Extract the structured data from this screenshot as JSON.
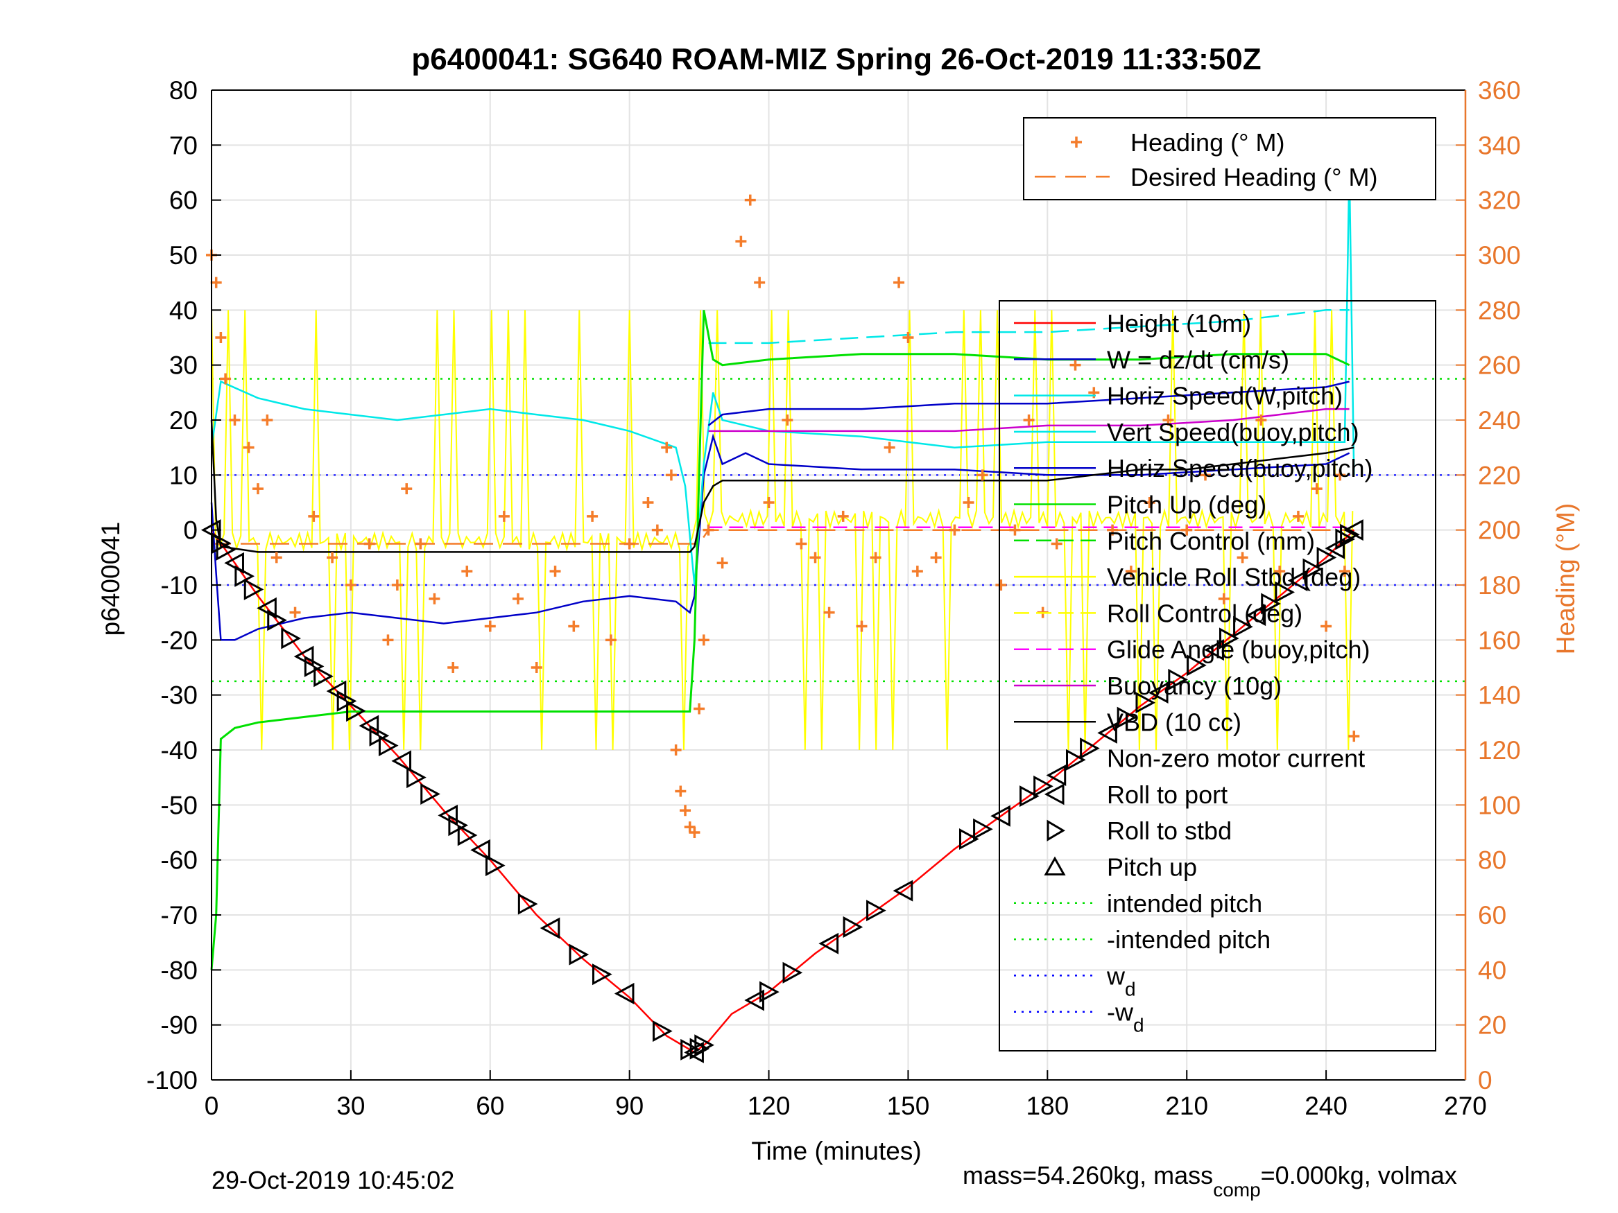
{
  "chart_data": {
    "type": "line",
    "title": "p6400041: SG640 ROAM-MIZ Spring 26-Oct-2019 11:33:50Z",
    "xlabel": "Time (minutes)",
    "ylabel": "p6400041",
    "ylabel_right": "Heading (°M)",
    "xlim": [
      0,
      270
    ],
    "ylim": [
      -100,
      80
    ],
    "ylim_right": [
      0,
      360
    ],
    "x_ticks": [
      0,
      30,
      60,
      90,
      120,
      150,
      180,
      210,
      240,
      270
    ],
    "y_ticks": [
      80,
      70,
      60,
      50,
      40,
      30,
      20,
      10,
      0,
      -10,
      -20,
      -30,
      -40,
      -50,
      -60,
      -70,
      -80,
      -90,
      -100
    ],
    "y_ticks_right": [
      360,
      340,
      320,
      300,
      280,
      260,
      240,
      220,
      200,
      180,
      160,
      140,
      120,
      100,
      80,
      60,
      40,
      20,
      0
    ],
    "grid": true,
    "legend_top": [
      {
        "label": "Heading (° M)",
        "color": "#f47c2a",
        "style": "plus"
      },
      {
        "label": "Desired Heading (° M)",
        "color": "#f47c2a",
        "style": "dash"
      }
    ],
    "legend_main": [
      {
        "label": "Height (10m)",
        "color": "#ff0000",
        "style": "line"
      },
      {
        "label": "W = dz/dt (cm/s)",
        "color": "#0000c8",
        "style": "line"
      },
      {
        "label": "Horiz Speed(W,pitch)",
        "color": "#00e8e8",
        "style": "line"
      },
      {
        "label": "Vert Speed(buoy,pitch)",
        "color": "#00e8e8",
        "style": "line"
      },
      {
        "label": "Horiz Speed(buoy,pitch)",
        "color": "#0000c8",
        "style": "line"
      },
      {
        "label": "Pitch Up (deg)",
        "color": "#00e000",
        "style": "line"
      },
      {
        "label": "Pitch Control (mm)",
        "color": "#00e000",
        "style": "dash"
      },
      {
        "label": "Vehicle Roll Stbd (deg)",
        "color": "#ffff00",
        "style": "line"
      },
      {
        "label": "Roll Control (deg)",
        "color": "#ffff00",
        "style": "dash"
      },
      {
        "label": "Glide Angle (buoy,pitch)",
        "color": "#ff00ff",
        "style": "dash"
      },
      {
        "label": "Buoyancy (10g)",
        "color": "#cc00cc",
        "style": "line"
      },
      {
        "label": "VBD (10 cc)",
        "color": "#000000",
        "style": "line"
      },
      {
        "label": "Non-zero motor current",
        "color": "#000000",
        "style": "none"
      },
      {
        "label": "Roll to port",
        "color": "#000000",
        "style": "tri-left"
      },
      {
        "label": "Roll to stbd",
        "color": "#000000",
        "style": "tri-right"
      },
      {
        "label": "Pitch up",
        "color": "#000000",
        "style": "tri-up"
      },
      {
        "label": "intended pitch",
        "color": "#00e000",
        "style": "dot"
      },
      {
        "label": "-intended pitch",
        "color": "#00e000",
        "style": "dot"
      },
      {
        "label": "w",
        "sub": "d",
        "color": "#0000ff",
        "style": "dot"
      },
      {
        "label": "-w",
        "sub": "d",
        "color": "#0000ff",
        "style": "dot"
      }
    ],
    "reference_lines": {
      "intended_pitch": 27.5,
      "w_d": 10
    },
    "series": [
      {
        "name": "Height (10m)",
        "x": [
          0,
          10,
          20,
          30,
          40,
          50,
          60,
          70,
          80,
          90,
          98,
          104,
          107,
          112,
          120,
          130,
          140,
          150,
          160,
          170,
          180,
          190,
          200,
          210,
          220,
          230,
          240,
          246
        ],
        "y": [
          0,
          -12,
          -23,
          -32,
          -41,
          -51,
          -60,
          -70,
          -78,
          -85,
          -92,
          -95,
          -93,
          -88,
          -84,
          -77,
          -71,
          -65,
          -58,
          -52,
          -46,
          -39,
          -32,
          -26,
          -19,
          -12,
          -5,
          0
        ]
      },
      {
        "name": "W = dz/dt (cm/s)",
        "x": [
          0,
          1,
          2,
          5,
          10,
          20,
          30,
          40,
          50,
          60,
          70,
          80,
          90,
          100,
          103,
          104,
          106,
          108,
          110,
          115,
          120,
          140,
          160,
          180,
          200,
          220,
          240,
          245
        ],
        "y": [
          5,
          -8,
          -20,
          -20,
          -18,
          -16,
          -15,
          -16,
          -17,
          -16,
          -15,
          -13,
          -12,
          -13,
          -15,
          -12,
          10,
          17,
          12,
          14,
          12,
          11,
          11,
          10,
          10,
          11,
          12,
          14
        ]
      },
      {
        "name": "Horiz Speed(W,pitch)",
        "x": [
          0,
          2,
          10,
          20,
          30,
          40,
          50,
          60,
          70,
          80,
          90,
          100,
          102,
          104,
          106,
          108,
          110,
          120,
          140,
          160,
          180,
          200,
          220,
          240,
          244,
          245,
          246
        ],
        "y": [
          15,
          27,
          24,
          22,
          21,
          20,
          21,
          22,
          21,
          20,
          18,
          15,
          8,
          -10,
          12,
          25,
          20,
          18,
          17,
          15,
          16,
          16,
          16,
          16,
          16,
          66,
          10
        ]
      },
      {
        "name": "Vert Speed(buoy,pitch)",
        "x": [
          107,
          120,
          140,
          160,
          180,
          200,
          220,
          240,
          245
        ],
        "y": [
          34,
          34,
          35,
          36,
          36,
          37,
          38,
          40,
          40
        ]
      },
      {
        "name": "Horiz Speed(buoy,pitch)",
        "x": [
          107,
          110,
          120,
          140,
          160,
          180,
          200,
          220,
          240,
          245
        ],
        "y": [
          19,
          21,
          22,
          22,
          23,
          23,
          24,
          25,
          26,
          27
        ]
      },
      {
        "name": "Pitch Up (deg)",
        "x": [
          0,
          1,
          2,
          5,
          10,
          20,
          30,
          40,
          50,
          60,
          70,
          80,
          90,
          100,
          103,
          104,
          106,
          108,
          110,
          120,
          140,
          160,
          180,
          200,
          220,
          240,
          245
        ],
        "y": [
          -80,
          -70,
          -38,
          -36,
          -35,
          -34,
          -33,
          -33,
          -33,
          -33,
          -33,
          -33,
          -33,
          -33,
          -33,
          -20,
          40,
          31,
          30,
          31,
          32,
          32,
          31,
          31,
          32,
          32,
          30
        ]
      },
      {
        "name": "VBD (10 cc)",
        "x": [
          0,
          1,
          2,
          10,
          40,
          80,
          103,
          104,
          106,
          108,
          110,
          120,
          140,
          160,
          180,
          190,
          200,
          210,
          220,
          230,
          240,
          246
        ],
        "y": [
          20,
          2,
          -3,
          -4,
          -4,
          -4,
          -4,
          -3,
          5,
          8,
          9,
          9,
          9,
          9,
          9,
          10,
          11,
          11,
          12,
          13,
          14,
          15
        ]
      },
      {
        "name": "Buoyancy (10g)",
        "x": [
          107,
          120,
          140,
          160,
          180,
          200,
          220,
          230,
          240,
          245
        ],
        "y": [
          18,
          18,
          18,
          18,
          19,
          19,
          20,
          21,
          22,
          22
        ]
      },
      {
        "name": "Glide Angle (buoy,pitch)",
        "x": [
          107,
          120,
          140,
          160,
          180,
          200,
          220,
          240,
          245
        ],
        "y": [
          0.5,
          0.5,
          0.5,
          0.5,
          0.5,
          0.5,
          0.5,
          0.5,
          0.5
        ]
      }
    ],
    "heading_points_deg": [
      [
        0,
        300
      ],
      [
        1,
        290
      ],
      [
        2,
        270
      ],
      [
        3,
        255
      ],
      [
        5,
        240
      ],
      [
        8,
        230
      ],
      [
        10,
        215
      ],
      [
        12,
        240
      ],
      [
        14,
        190
      ],
      [
        18,
        170
      ],
      [
        22,
        205
      ],
      [
        26,
        190
      ],
      [
        30,
        180
      ],
      [
        34,
        195
      ],
      [
        38,
        160
      ],
      [
        40,
        180
      ],
      [
        42,
        215
      ],
      [
        45,
        195
      ],
      [
        48,
        175
      ],
      [
        52,
        150
      ],
      [
        55,
        185
      ],
      [
        60,
        165
      ],
      [
        63,
        205
      ],
      [
        66,
        175
      ],
      [
        70,
        150
      ],
      [
        74,
        185
      ],
      [
        78,
        165
      ],
      [
        82,
        205
      ],
      [
        86,
        160
      ],
      [
        90,
        195
      ],
      [
        94,
        210
      ],
      [
        96,
        200
      ],
      [
        98,
        230
      ],
      [
        99,
        220
      ],
      [
        100,
        120
      ],
      [
        101,
        105
      ],
      [
        102,
        98
      ],
      [
        103,
        92
      ],
      [
        104,
        90
      ],
      [
        105,
        135
      ],
      [
        106,
        160
      ],
      [
        107,
        200
      ],
      [
        110,
        188
      ],
      [
        114,
        305
      ],
      [
        116,
        320
      ],
      [
        118,
        290
      ],
      [
        120,
        210
      ],
      [
        124,
        240
      ],
      [
        127,
        195
      ],
      [
        130,
        190
      ],
      [
        133,
        170
      ],
      [
        136,
        205
      ],
      [
        140,
        165
      ],
      [
        143,
        190
      ],
      [
        146,
        230
      ],
      [
        148,
        290
      ],
      [
        150,
        270
      ],
      [
        152,
        185
      ],
      [
        156,
        190
      ],
      [
        160,
        200
      ],
      [
        163,
        210
      ],
      [
        166,
        220
      ],
      [
        170,
        180
      ],
      [
        173,
        200
      ],
      [
        176,
        240
      ],
      [
        179,
        170
      ],
      [
        182,
        195
      ],
      [
        186,
        260
      ],
      [
        190,
        250
      ],
      [
        194,
        200
      ],
      [
        198,
        185
      ],
      [
        202,
        210
      ],
      [
        206,
        240
      ],
      [
        210,
        200
      ],
      [
        214,
        220
      ],
      [
        218,
        175
      ],
      [
        222,
        190
      ],
      [
        226,
        240
      ],
      [
        230,
        185
      ],
      [
        234,
        205
      ],
      [
        238,
        215
      ],
      [
        240,
        165
      ],
      [
        243,
        220
      ],
      [
        244,
        185
      ],
      [
        246,
        125
      ]
    ],
    "desired_heading_deg": [
      [
        0,
        195
      ],
      [
        100,
        195
      ],
      [
        105,
        195
      ],
      [
        107,
        200
      ],
      [
        246,
        200
      ]
    ],
    "roll_markers": [
      0,
      2,
      3,
      5,
      7,
      9,
      12,
      14,
      17,
      20,
      22,
      24,
      27,
      29,
      31,
      34,
      36,
      38,
      41,
      44,
      47,
      51,
      53,
      55,
      58,
      61,
      68,
      73,
      79,
      84,
      89,
      97,
      103,
      104,
      105,
      106,
      117,
      120,
      125,
      133,
      138,
      143,
      149,
      163,
      166,
      170,
      176,
      179,
      182,
      186,
      189,
      193,
      197,
      201,
      204,
      208,
      212,
      216,
      219,
      222,
      225,
      228,
      231,
      234,
      237,
      240,
      242,
      244,
      245,
      246
    ],
    "footer_left": "29-Oct-2019 10:45:02",
    "footer_right_pre": "mass=54.260kg, mass",
    "footer_right_sub": "comp",
    "footer_right_post": "=0.000kg, volmax"
  }
}
